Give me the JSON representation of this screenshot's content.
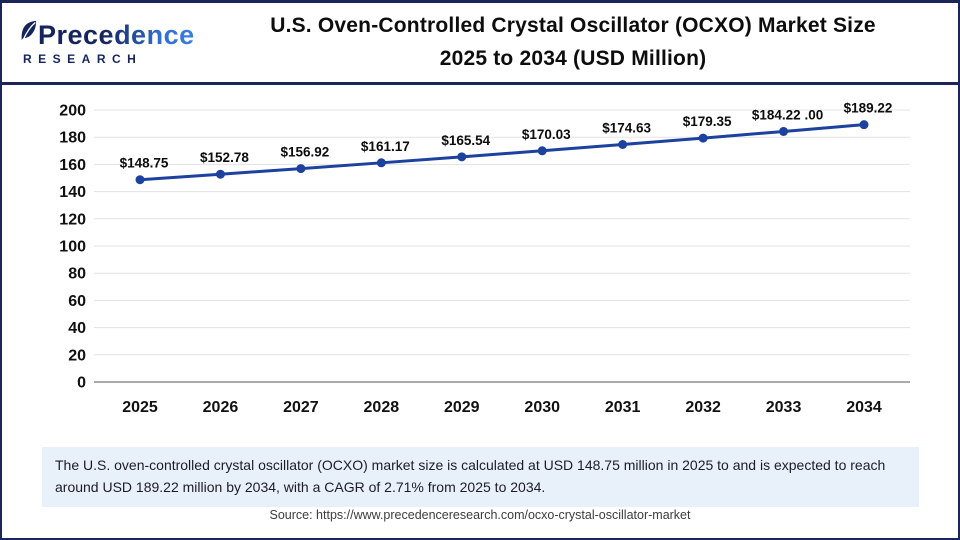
{
  "header": {
    "logo": {
      "brand": "Precedence",
      "sub": "RESEARCH"
    },
    "title_line1": "U.S. Oven-Controlled Crystal Oscillator (OCXO) Market Size",
    "title_line2": "2025 to 2034 (USD Million)"
  },
  "chart_data": {
    "type": "line",
    "title": "U.S. Oven-Controlled Crystal Oscillator (OCXO) Market Size 2025 to 2034 (USD Million)",
    "x": [
      "2025",
      "2026",
      "2027",
      "2028",
      "2029",
      "2030",
      "2031",
      "2032",
      "2033",
      "2034"
    ],
    "values": [
      148.75,
      152.78,
      156.92,
      161.17,
      165.54,
      170.03,
      174.63,
      179.35,
      184.22,
      189.22
    ],
    "point_labels": [
      "$148.75",
      "$152.78",
      "$156.92",
      "$161.17",
      "$165.54",
      "$170.03",
      "$174.63",
      "$179.35",
      "$184.22 .00",
      "$189.22"
    ],
    "unit": "USD Million",
    "ylim": [
      0,
      200
    ],
    "ytick_step": 20,
    "grid": true,
    "legend": "none",
    "line_color": "#1d419f",
    "marker": "circle"
  },
  "footer": {
    "summary": "The U.S. oven-controlled crystal oscillator (OCXO) market size is calculated at USD 148.75 million in 2025 to and is expected to reach around USD 189.22 million by 2034, with a CAGR of 2.71% from 2025 to 2034.",
    "source": "Source: https://www.precedenceresearch.com/ocxo-crystal-oscillator-market"
  },
  "colors": {
    "navy": "#1b2559",
    "brand_navy": "#16245e",
    "brand_blue": "#2f6fd0",
    "line": "#1d419f",
    "gridline": "#e3e3e3",
    "zero_axis": "#a9a9a9",
    "summary_bg": "#e8f1fa"
  }
}
